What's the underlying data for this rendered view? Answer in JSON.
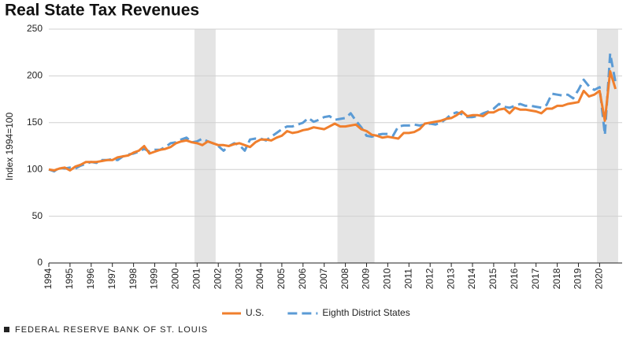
{
  "chart_data": {
    "type": "line",
    "title": "Real State Tax Revenues",
    "y_label": "Index 1994=100",
    "source": "FEDERAL RESERVE BANK OF ST. LOUIS",
    "categories": [
      "1994",
      null,
      null,
      null,
      "1995",
      null,
      null,
      null,
      "1996",
      null,
      null,
      null,
      "1997",
      null,
      null,
      null,
      "1998",
      null,
      null,
      null,
      "1999",
      null,
      null,
      null,
      "2000",
      null,
      null,
      null,
      "2001",
      null,
      null,
      null,
      "2002",
      null,
      null,
      null,
      "2003",
      null,
      null,
      null,
      "2004",
      null,
      null,
      null,
      "2005",
      null,
      null,
      null,
      "2006",
      null,
      null,
      null,
      "2007",
      null,
      null,
      null,
      "2008",
      null,
      null,
      null,
      "2009",
      null,
      null,
      null,
      "2010",
      null,
      null,
      null,
      "2011",
      null,
      null,
      null,
      "2012",
      null,
      null,
      null,
      "2013",
      null,
      null,
      null,
      "2014",
      null,
      null,
      null,
      "2015",
      null,
      null,
      null,
      "2016",
      null,
      null,
      null,
      "2017",
      null,
      null,
      null,
      "2018",
      null,
      null,
      null,
      "2019",
      null,
      null,
      null,
      "2020",
      null,
      null,
      null
    ],
    "series": [
      {
        "name": "U.S.",
        "color": "#f07f2d",
        "dashed": false,
        "values": [
          100,
          99,
          101,
          102,
          99,
          103,
          105,
          108,
          108,
          108,
          109,
          110,
          110,
          113,
          114,
          115,
          118,
          120,
          125,
          117,
          119,
          121,
          122,
          124,
          128,
          130,
          131,
          129,
          128,
          126,
          130,
          128,
          126,
          126,
          125,
          127,
          128,
          126,
          124,
          129,
          132,
          132,
          131,
          134,
          136,
          141,
          139,
          140,
          142,
          143,
          145,
          144,
          143,
          146,
          149,
          146,
          146,
          147,
          148,
          143,
          141,
          137,
          136,
          134,
          135,
          134,
          133,
          139,
          139,
          140,
          143,
          149,
          150,
          151,
          152,
          154,
          155,
          158,
          162,
          157,
          158,
          158,
          157,
          161,
          161,
          164,
          165,
          160,
          166,
          164,
          164,
          163,
          162,
          160,
          165,
          165,
          168,
          168,
          170,
          171,
          172,
          184,
          178,
          180,
          184,
          152,
          205,
          186
        ]
      },
      {
        "name": "Eighth District States",
        "color": "#5b9bd5",
        "dashed": true,
        "values": [
          100,
          98,
          102,
          101,
          102,
          101,
          104,
          106,
          108,
          107,
          110,
          110,
          111,
          110,
          114,
          116,
          117,
          119,
          122,
          119,
          121,
          121,
          124,
          128,
          129,
          132,
          134,
          129,
          130,
          133,
          130,
          128,
          125,
          120,
          125,
          128,
          126,
          120,
          132,
          133,
          133,
          131,
          135,
          139,
          143,
          146,
          146,
          148,
          150,
          155,
          151,
          153,
          156,
          157,
          153,
          154,
          155,
          160,
          152,
          145,
          136,
          135,
          137,
          138,
          138,
          136,
          146,
          147,
          147,
          148,
          147,
          148,
          149,
          148,
          150,
          154,
          159,
          161,
          159,
          156,
          156,
          157,
          160,
          162,
          165,
          170,
          167,
          166,
          168,
          170,
          168,
          168,
          167,
          166,
          169,
          181,
          180,
          179,
          180,
          176,
          185,
          196,
          189,
          185,
          188,
          137,
          224,
          193
        ]
      }
    ],
    "recessions": [
      [
        28,
        31
      ],
      [
        55,
        61
      ],
      [
        104,
        107
      ]
    ],
    "recession_color": "#e4e4e4",
    "ylim": [
      0,
      250
    ],
    "yticks": [
      0,
      50,
      100,
      150,
      200,
      250
    ],
    "grid": true,
    "legend": "bottom"
  }
}
